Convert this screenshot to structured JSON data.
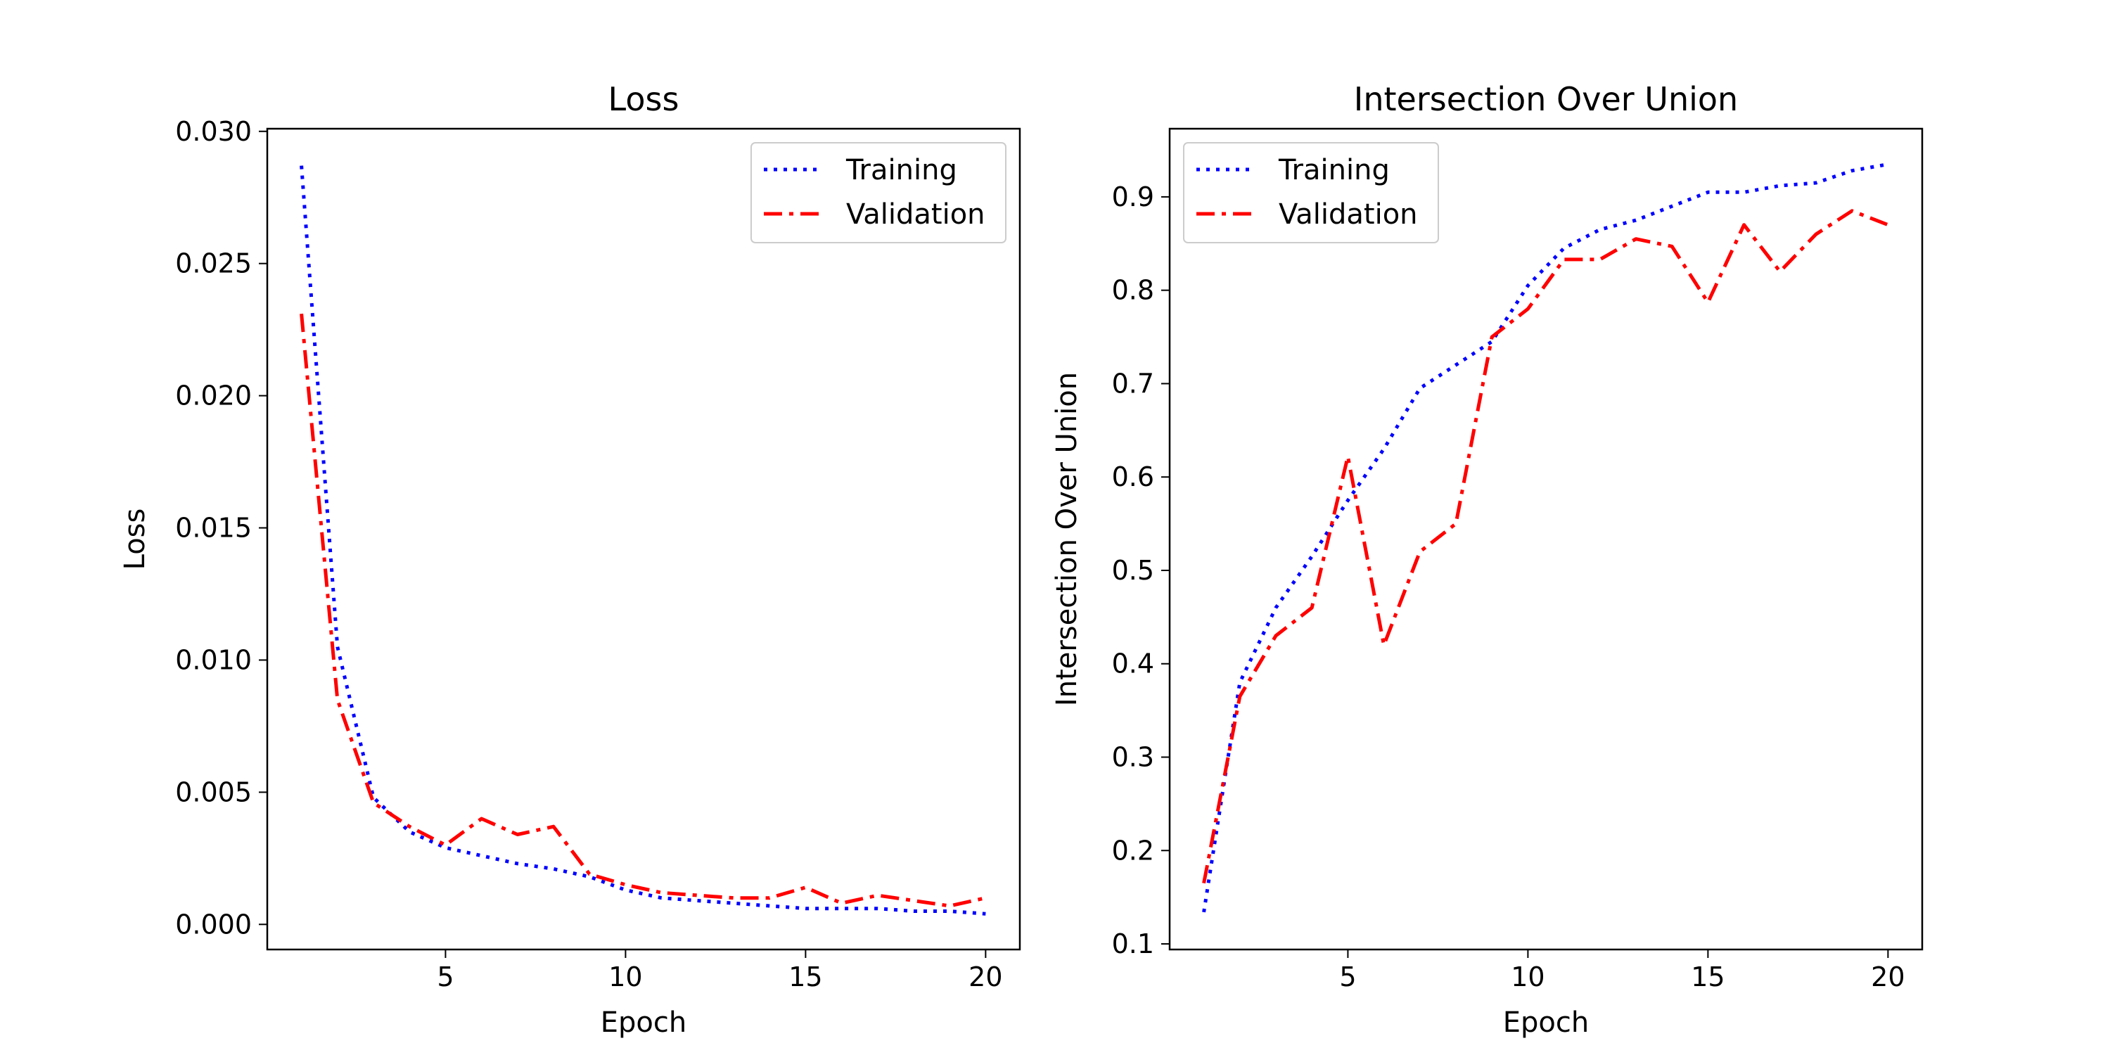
{
  "chart_data": [
    {
      "type": "line",
      "title": "Loss",
      "xlabel": "Epoch",
      "ylabel": "Loss",
      "xlim": [
        0.05,
        20.95
      ],
      "ylim": [
        -0.00095,
        0.0301
      ],
      "x_ticks": [
        5,
        10,
        15,
        20
      ],
      "y_ticks": [
        0.0,
        0.005,
        0.01,
        0.015,
        0.02,
        0.025,
        0.03
      ],
      "x_tick_labels": [
        "5",
        "10",
        "15",
        "20"
      ],
      "y_tick_labels": [
        "0.000",
        "0.005",
        "0.010",
        "0.015",
        "0.020",
        "0.025",
        "0.030"
      ],
      "grid": false,
      "legend_position": "upper right",
      "x": [
        1,
        2,
        3,
        4,
        5,
        6,
        7,
        8,
        9,
        10,
        11,
        12,
        13,
        14,
        15,
        16,
        17,
        18,
        19,
        20
      ],
      "series": [
        {
          "name": "Training",
          "color": "#0000ff",
          "style": "dotted",
          "values": [
            0.0287,
            0.0105,
            0.0048,
            0.0035,
            0.0029,
            0.0026,
            0.0023,
            0.0021,
            0.0018,
            0.0013,
            0.001,
            0.0009,
            0.0008,
            0.0007,
            0.0006,
            0.0006,
            0.0006,
            0.0005,
            0.0005,
            0.0004
          ]
        },
        {
          "name": "Validation",
          "color": "#ff0000",
          "style": "dashdot",
          "values": [
            0.0231,
            0.0085,
            0.0046,
            0.0037,
            0.003,
            0.004,
            0.0034,
            0.0037,
            0.0019,
            0.0015,
            0.0012,
            0.0011,
            0.001,
            0.001,
            0.0014,
            0.0008,
            0.0011,
            0.0009,
            0.0007,
            0.001
          ]
        }
      ]
    },
    {
      "type": "line",
      "title": "Intersection Over Union",
      "xlabel": "Epoch",
      "ylabel": "Intersection Over Union",
      "xlim": [
        0.05,
        20.95
      ],
      "ylim": [
        0.094,
        0.973
      ],
      "x_ticks": [
        5,
        10,
        15,
        20
      ],
      "y_ticks": [
        0.1,
        0.2,
        0.3,
        0.4,
        0.5,
        0.6,
        0.7,
        0.8,
        0.9
      ],
      "x_tick_labels": [
        "5",
        "10",
        "15",
        "20"
      ],
      "y_tick_labels": [
        "0.1",
        "0.2",
        "0.3",
        "0.4",
        "0.5",
        "0.6",
        "0.7",
        "0.8",
        "0.9"
      ],
      "grid": false,
      "legend_position": "upper left",
      "x": [
        1,
        2,
        3,
        4,
        5,
        6,
        7,
        8,
        9,
        10,
        11,
        12,
        13,
        14,
        15,
        16,
        17,
        18,
        19,
        20
      ],
      "series": [
        {
          "name": "Training",
          "color": "#0000ff",
          "style": "dotted",
          "values": [
            0.134,
            0.38,
            0.46,
            0.515,
            0.575,
            0.63,
            0.695,
            0.72,
            0.745,
            0.805,
            0.845,
            0.865,
            0.875,
            0.89,
            0.905,
            0.905,
            0.912,
            0.915,
            0.928,
            0.935
          ]
        },
        {
          "name": "Validation",
          "color": "#ff0000",
          "style": "dashdot",
          "values": [
            0.165,
            0.365,
            0.43,
            0.46,
            0.622,
            0.42,
            0.52,
            0.55,
            0.75,
            0.78,
            0.833,
            0.833,
            0.855,
            0.847,
            0.787,
            0.87,
            0.82,
            0.86,
            0.885,
            0.87
          ]
        }
      ]
    }
  ]
}
